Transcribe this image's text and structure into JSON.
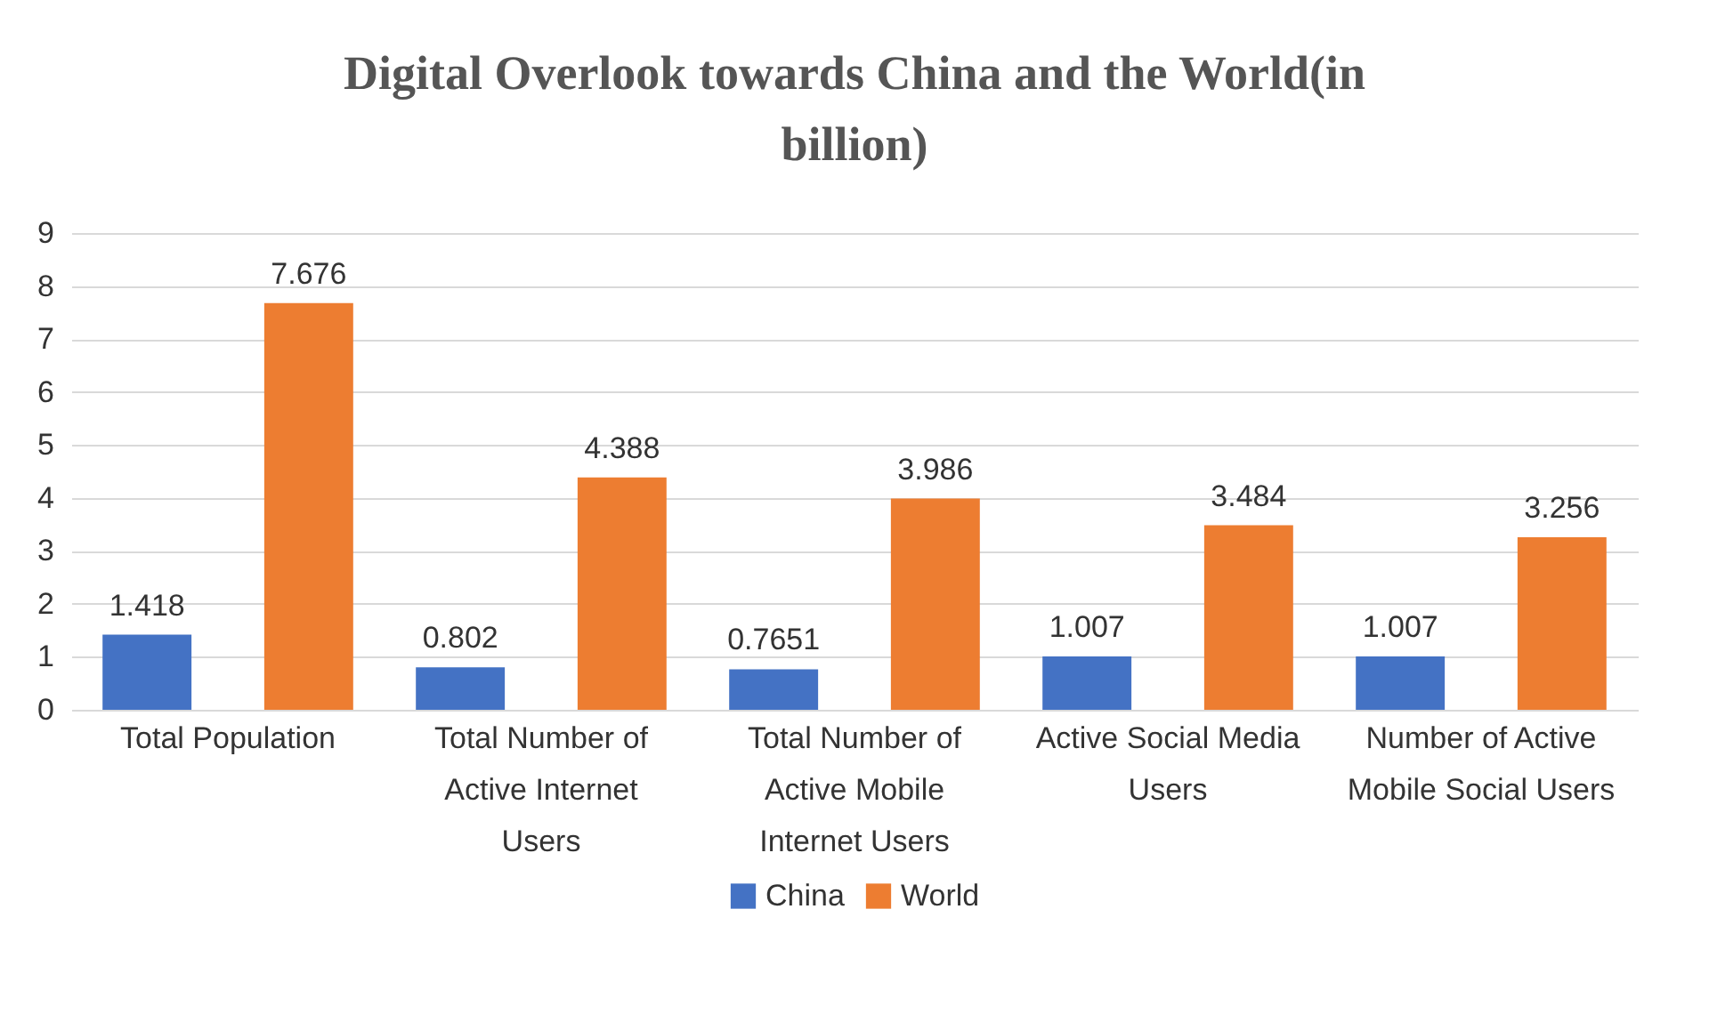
{
  "chart_data": {
    "type": "bar",
    "title": "Digital Overlook towards China and the World(in billion)",
    "categories": [
      "Total Population",
      "Total Number of Active Internet Users",
      "Total Number of Active Mobile Internet Users",
      "Active Social Media Users",
      "Number of Active Mobile Social Users"
    ],
    "series": [
      {
        "name": "China",
        "color": "#4472c4",
        "values": [
          1.418,
          0.802,
          0.7651,
          1.007,
          1.007
        ]
      },
      {
        "name": "World",
        "color": "#ed7d31",
        "values": [
          7.676,
          4.388,
          3.986,
          3.484,
          3.256
        ]
      }
    ],
    "ylim": [
      0,
      9
    ],
    "yticks": [
      0,
      1,
      2,
      3,
      4,
      5,
      6,
      7,
      8,
      9
    ],
    "grid": "y",
    "legend": "bottom",
    "data_labels": true
  }
}
